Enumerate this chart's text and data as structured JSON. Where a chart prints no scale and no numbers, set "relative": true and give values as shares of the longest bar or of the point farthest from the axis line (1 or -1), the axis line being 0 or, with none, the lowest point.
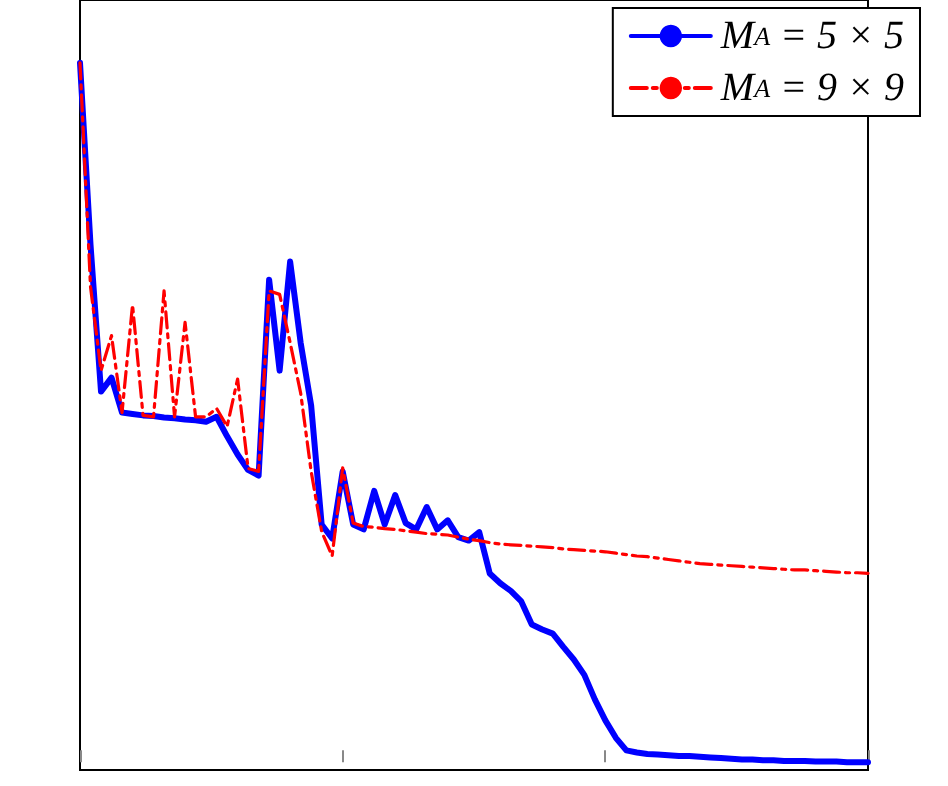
{
  "chart_data": {
    "type": "line",
    "relative": true,
    "categories": [
      null,
      null,
      null,
      null,
      null,
      null,
      null,
      null,
      null,
      null,
      null,
      null,
      null,
      null,
      null,
      null,
      null,
      null,
      null,
      null,
      null,
      null,
      null,
      null,
      null,
      null,
      null,
      null,
      null,
      null,
      null,
      null,
      null,
      null,
      null,
      null,
      null,
      null,
      null,
      null,
      null,
      null,
      null,
      null,
      null,
      null,
      null,
      null,
      null,
      null,
      null,
      null,
      null,
      null,
      null,
      null,
      null,
      null,
      null,
      null,
      null,
      null,
      null,
      null,
      null,
      null,
      null,
      null,
      null,
      null,
      null,
      null,
      null,
      null,
      null,
      null
    ],
    "grid": false,
    "legend": "top right",
    "marker": "none",
    "series": [
      {
        "name": "M$_{A}$ = 5 × 5",
        "color": "#0000ff",
        "line_style": "solid",
        "values": [
          1.0,
          0.74,
          0.53,
          0.55,
          0.5,
          0.498,
          0.496,
          0.495,
          0.493,
          0.492,
          0.49,
          0.489,
          0.487,
          0.494,
          0.466,
          0.44,
          0.418,
          0.41,
          0.69,
          0.56,
          0.716,
          0.6,
          0.51,
          0.34,
          0.32,
          0.416,
          0.34,
          0.333,
          0.388,
          0.34,
          0.382,
          0.342,
          0.333,
          0.365,
          0.333,
          0.346,
          0.322,
          0.317,
          0.329,
          0.27,
          0.256,
          0.245,
          0.23,
          0.197,
          0.19,
          0.184,
          0.165,
          0.147,
          0.125,
          0.09,
          0.06,
          0.035,
          0.017,
          0.014,
          0.012,
          0.011,
          0.01,
          0.009,
          0.009,
          0.008,
          0.007,
          0.006,
          0.005,
          0.004,
          0.004,
          0.003,
          0.003,
          0.002,
          0.002,
          0.002,
          0.001,
          0.001,
          0.001,
          0,
          0,
          0
        ]
      },
      {
        "name": "M$_{A}$ = 9 × 9",
        "color": "#ff0000",
        "line_style": "dashed",
        "values": [
          1.0,
          0.68,
          0.56,
          0.61,
          0.5,
          0.654,
          0.496,
          0.494,
          0.674,
          0.494,
          0.629,
          0.494,
          0.494,
          0.506,
          0.48,
          0.548,
          0.42,
          0.416,
          0.674,
          0.669,
          0.6,
          0.528,
          0.416,
          0.33,
          0.295,
          0.421,
          0.342,
          0.337,
          0.336,
          0.334,
          0.333,
          0.331,
          0.329,
          0.327,
          0.326,
          0.325,
          0.322,
          0.319,
          0.317,
          0.314,
          0.312,
          0.311,
          0.31,
          0.309,
          0.308,
          0.307,
          0.305,
          0.304,
          0.303,
          0.302,
          0.301,
          0.299,
          0.297,
          0.295,
          0.294,
          0.292,
          0.29,
          0.288,
          0.286,
          0.284,
          0.283,
          0.282,
          0.281,
          0.28,
          0.279,
          0.278,
          0.277,
          0.276,
          0.275,
          0.275,
          0.274,
          0.273,
          0.272,
          0.271,
          0.271,
          0.27
        ]
      }
    ]
  }
}
